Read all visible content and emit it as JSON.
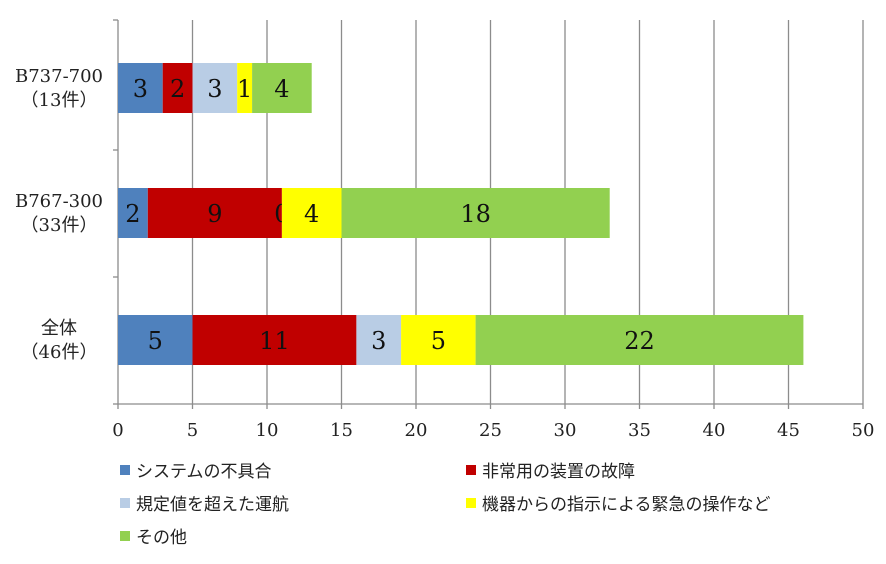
{
  "chart_data": {
    "type": "bar",
    "orientation": "horizontal",
    "stacked": true,
    "categories": [
      {
        "line1": "B737-700",
        "line2": "（13件）"
      },
      {
        "line1": "B767-300",
        "line2": "（33件）"
      },
      {
        "line1": "全体",
        "line2": "（46件）"
      }
    ],
    "series": [
      {
        "name": "システムの不具合",
        "color": "#4F81BD",
        "values": [
          3,
          2,
          5
        ]
      },
      {
        "name": "非常用の装置の故障",
        "color": "#C00000",
        "values": [
          2,
          9,
          11
        ]
      },
      {
        "name": "規定値を超えた運航",
        "color": "#B9CDE5",
        "values": [
          3,
          0,
          3
        ]
      },
      {
        "name": "機器からの指示による緊急の操作など",
        "color": "#FFFF00",
        "values": [
          1,
          4,
          5
        ]
      },
      {
        "name": "その他",
        "color": "#92D050",
        "values": [
          4,
          18,
          22
        ]
      }
    ],
    "xlim": [
      0,
      50
    ],
    "xticks": [
      "0",
      "5",
      "10",
      "15",
      "20",
      "25",
      "30",
      "35",
      "40",
      "45",
      "50"
    ],
    "grid": true,
    "legend_position": "bottom"
  }
}
